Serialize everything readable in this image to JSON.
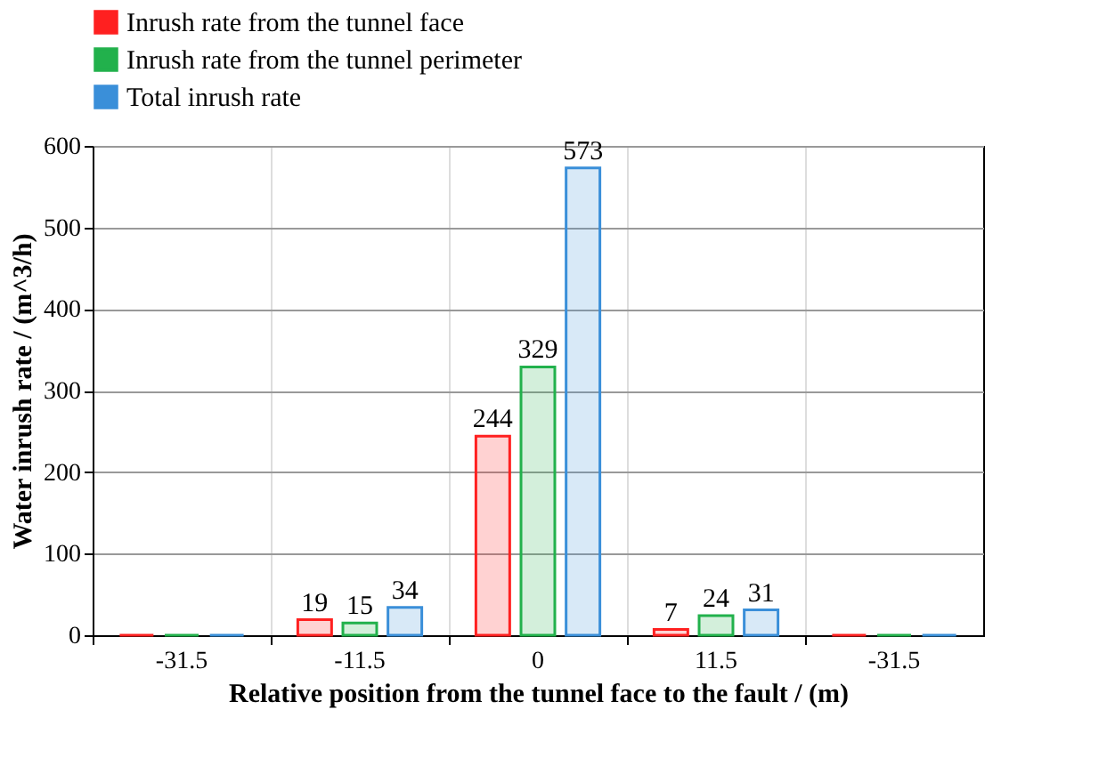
{
  "chart_data": {
    "type": "bar",
    "categories": [
      "-31.5",
      "-11.5",
      "0",
      "11.5",
      "-31.5"
    ],
    "xlabel": "Relative position from the tunnel face to the fault / (m)",
    "ylabel": "Water inrush rate /  (m^3/h)",
    "ylim": [
      0,
      600
    ],
    "yticks": [
      0,
      100,
      200,
      300,
      400,
      500,
      600
    ],
    "grid": true,
    "legend": "top",
    "series": [
      {
        "name": "Inrush rate from the tunnel face",
        "color": "#ff2020",
        "values": [
          0,
          19,
          244,
          7,
          0
        ],
        "value_labels": [
          null,
          "19",
          "244",
          "7",
          null
        ]
      },
      {
        "name": "Inrush rate from the tunnel perimeter",
        "color": "#22b14c",
        "values": [
          0,
          15,
          329,
          24,
          0
        ],
        "value_labels": [
          null,
          "15",
          "329",
          "24",
          null
        ]
      },
      {
        "name": "Total inrush rate",
        "color": "#3a8fd9",
        "values": [
          0,
          34,
          573,
          31,
          0
        ],
        "value_labels": [
          null,
          "34",
          "573",
          "31",
          null
        ]
      }
    ]
  }
}
